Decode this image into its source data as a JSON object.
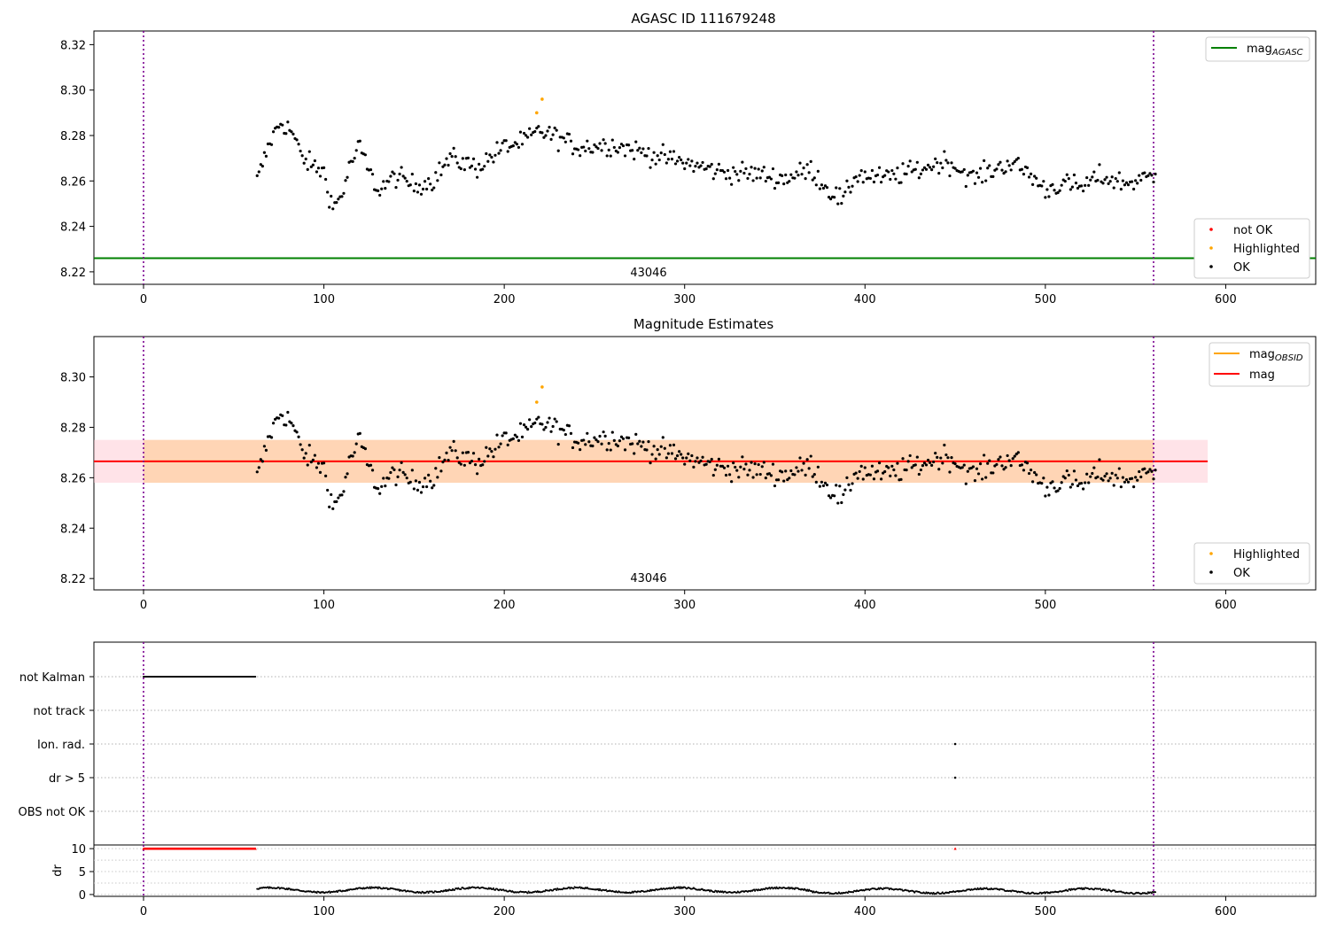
{
  "chart_data": [
    {
      "type": "scatter",
      "title": "AGASC ID 111679248",
      "xlabel": "",
      "ylabel": "",
      "xlim": [
        -28,
        650
      ],
      "ylim": [
        8.2145,
        8.326
      ],
      "xticks": [
        "0",
        "100",
        "200",
        "300",
        "400",
        "500",
        "600"
      ],
      "yticks": [
        "8.22",
        "8.24",
        "8.26",
        "8.28",
        "8.30",
        "8.32"
      ],
      "annotation": "43046",
      "obsid_boundaries": [
        0,
        560
      ],
      "reference_line": {
        "name": "mag_AGASC",
        "y": 8.226,
        "color": "#008000"
      },
      "legend_lines": [
        {
          "label_main": "mag",
          "label_sub": "AGASC",
          "color": "#008000"
        }
      ],
      "legend_points": [
        {
          "label": "not OK",
          "color": "#ff0000"
        },
        {
          "label": "Highlighted",
          "color": "#ffa500"
        },
        {
          "label": "OK",
          "color": "#000000"
        }
      ],
      "highlighted_points": [
        {
          "x": 218,
          "y": 8.29
        },
        {
          "x": 221,
          "y": 8.296
        }
      ],
      "series_control": [
        [
          63,
          8.26
        ],
        [
          70,
          8.277
        ],
        [
          76,
          8.286
        ],
        [
          82,
          8.282
        ],
        [
          88,
          8.27
        ],
        [
          95,
          8.266
        ],
        [
          100,
          8.264
        ],
        [
          105,
          8.248
        ],
        [
          110,
          8.254
        ],
        [
          115,
          8.268
        ],
        [
          120,
          8.275
        ],
        [
          125,
          8.264
        ],
        [
          130,
          8.256
        ],
        [
          140,
          8.262
        ],
        [
          150,
          8.258
        ],
        [
          160,
          8.26
        ],
        [
          170,
          8.27
        ],
        [
          185,
          8.266
        ],
        [
          200,
          8.275
        ],
        [
          210,
          8.277
        ],
        [
          220,
          8.282
        ],
        [
          230,
          8.279
        ],
        [
          240,
          8.275
        ],
        [
          260,
          8.276
        ],
        [
          280,
          8.272
        ],
        [
          300,
          8.268
        ],
        [
          320,
          8.264
        ],
        [
          340,
          8.263
        ],
        [
          355,
          8.261
        ],
        [
          370,
          8.265
        ],
        [
          380,
          8.256
        ],
        [
          388,
          8.251
        ],
        [
          395,
          8.263
        ],
        [
          410,
          8.261
        ],
        [
          430,
          8.265
        ],
        [
          445,
          8.269
        ],
        [
          460,
          8.261
        ],
        [
          480,
          8.268
        ],
        [
          490,
          8.264
        ],
        [
          500,
          8.256
        ],
        [
          510,
          8.259
        ],
        [
          520,
          8.257
        ],
        [
          530,
          8.262
        ],
        [
          545,
          8.259
        ],
        [
          560,
          8.262
        ]
      ]
    },
    {
      "type": "scatter",
      "title": "Magnitude Estimates",
      "xlabel": "",
      "ylabel": "",
      "xlim": [
        -28,
        650
      ],
      "ylim": [
        8.2155,
        8.316
      ],
      "xticks": [
        "0",
        "100",
        "200",
        "300",
        "400",
        "500",
        "600"
      ],
      "yticks": [
        "8.22",
        "8.24",
        "8.26",
        "8.28",
        "8.30"
      ],
      "annotation": "43046",
      "obsid_boundaries": [
        0,
        560
      ],
      "mag_line": {
        "name": "mag",
        "y": 8.2665,
        "color": "#ff0000"
      },
      "mag_band": {
        "low": 8.258,
        "high": 8.275,
        "x_end": 590
      },
      "mag_obsid": {
        "y": 8.2665,
        "low": 8.258,
        "high": 8.275,
        "x_start": 0,
        "x_end": 560,
        "color": "#ffa500"
      },
      "legend_lines": [
        {
          "label_main": "mag",
          "label_sub": "OBSID",
          "color": "#ffa500"
        },
        {
          "label_main": "mag",
          "label_sub": "",
          "color": "#ff0000"
        }
      ],
      "legend_points": [
        {
          "label": "Highlighted",
          "color": "#ffa500"
        },
        {
          "label": "OK",
          "color": "#000000"
        }
      ]
    },
    {
      "type": "scatter",
      "title": "",
      "xlim": [
        -28,
        650
      ],
      "categories": [
        "not Kalman",
        "not track",
        "Ion. rad.",
        "dr > 5",
        "OBS not OK"
      ],
      "flags": {
        "not Kalman": {
          "x_start": 0,
          "x_end": 62
        },
        "not track": {},
        "Ion. rad.": {
          "points": [
            450
          ]
        },
        "dr > 5": {
          "points": [
            450
          ]
        },
        "OBS not OK": {}
      },
      "obsid_boundaries": [
        0,
        560
      ]
    },
    {
      "type": "line",
      "title": "",
      "xlim": [
        -28,
        650
      ],
      "ylim": [
        -0.4,
        10.8
      ],
      "ylabel": "dr",
      "xticks": [
        "0",
        "100",
        "200",
        "300",
        "400",
        "500",
        "600"
      ],
      "yticks": [
        "0",
        "5",
        "10"
      ],
      "clipped_segments": [
        {
          "x_start": 0,
          "x_end": 62,
          "y": 10
        },
        {
          "x_start": 450,
          "x_end": 450,
          "y": 10
        }
      ],
      "dr_range": {
        "x_start": 63,
        "x_end": 561
      },
      "obsid_boundaries": [
        0,
        560
      ]
    }
  ]
}
